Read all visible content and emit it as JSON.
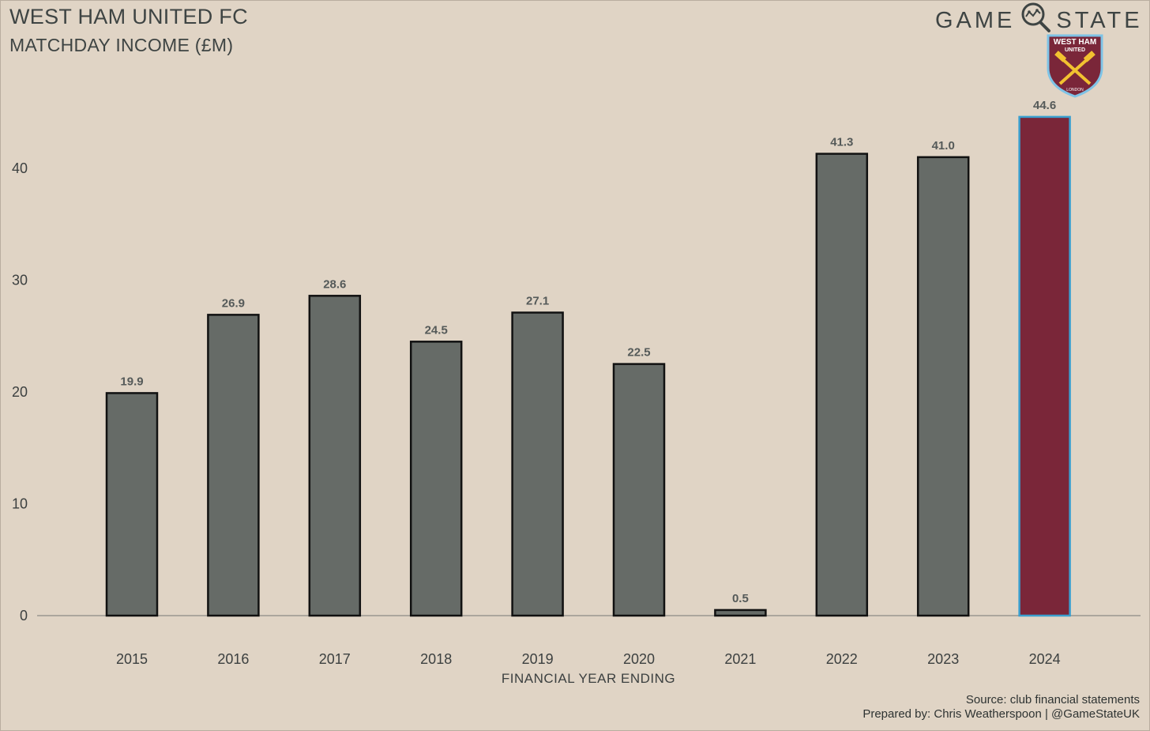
{
  "header": {
    "title": "WEST HAM UNITED FC",
    "subtitle": "MATCHDAY INCOME (£M)"
  },
  "brand": {
    "left": "GAME",
    "right": "STATE",
    "icon": "magnifier-icon"
  },
  "crest": {
    "line1": "WEST HAM",
    "line2": "UNITED",
    "line3": "LONDON",
    "icon": "crossed-hammers-icon"
  },
  "footer": {
    "source": "Source: club financial statements",
    "credit": "Prepared by: Chris Weatherspoon | @GameStateUK"
  },
  "chart_data": {
    "type": "bar",
    "categories": [
      "2015",
      "2016",
      "2017",
      "2018",
      "2019",
      "2020",
      "2021",
      "2022",
      "2023",
      "2024"
    ],
    "values": [
      19.9,
      26.9,
      28.6,
      24.5,
      27.1,
      22.5,
      0.5,
      41.3,
      41.0,
      44.6
    ],
    "value_labels": [
      "19.9",
      "26.9",
      "28.6",
      "24.5",
      "27.1",
      "22.5",
      "0.5",
      "41.3",
      "41.0",
      "44.6"
    ],
    "title": "WEST HAM UNITED FC",
    "subtitle": "MATCHDAY INCOME (£M)",
    "xlabel": "FINANCIAL YEAR ENDING",
    "ylabel": "",
    "ylim": [
      0,
      45
    ],
    "yticks": [
      0,
      10,
      20,
      30,
      40
    ],
    "grid": false,
    "colors": {
      "bar": "#666b67",
      "highlight_bar": "#7a2639",
      "highlight_edge": "#3a9fcf",
      "edge": "#111111",
      "background": "#e0d4c5"
    },
    "highlight_category": "2024"
  }
}
